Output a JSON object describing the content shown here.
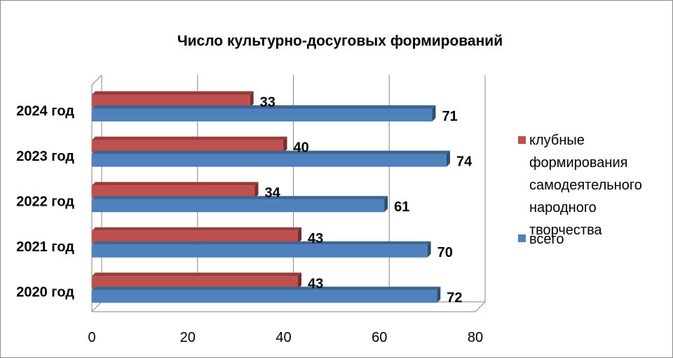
{
  "chart_data": {
    "type": "bar",
    "orientation": "horizontal",
    "three_d": true,
    "title": "Число культурно-досуговых формирований",
    "categories": [
      "2020 год",
      "2021 год",
      "2022 год",
      "2023 год",
      "2024 год"
    ],
    "series": [
      {
        "name": "клубные формирования самодеятельного народного творчества",
        "legend_lines": [
          "клубные",
          "формирования",
          "самодеятельного",
          "народного",
          "творчества"
        ],
        "color": "#c0504d",
        "values": [
          43,
          43,
          34,
          40,
          33
        ]
      },
      {
        "name": "всего",
        "legend_lines": [
          "всего"
        ],
        "color": "#4f81bd",
        "values": [
          72,
          70,
          61,
          74,
          71
        ]
      }
    ],
    "xlim": [
      0,
      80
    ],
    "xticks": [
      0,
      20,
      40,
      60,
      80
    ],
    "grid": true,
    "legend_position": "right",
    "data_labels": true
  }
}
